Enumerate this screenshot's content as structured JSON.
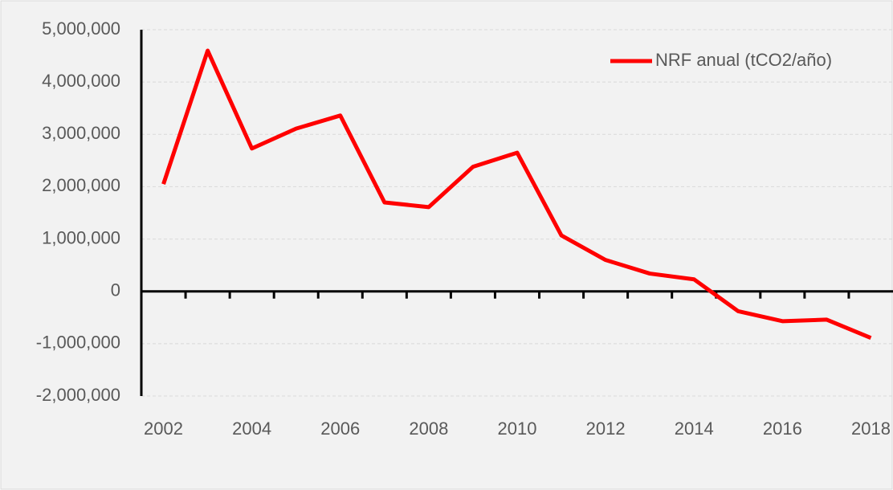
{
  "chart_data": {
    "type": "line",
    "categories": [
      "2002",
      null,
      "2004",
      null,
      "2006",
      null,
      "2008",
      null,
      "2010",
      null,
      "2012",
      null,
      "2014",
      null,
      "2016",
      null,
      "2018"
    ],
    "series": [
      {
        "name": "NRF anual (tCO2/año)",
        "color": "#ff0000",
        "values": [
          2050000,
          4600000,
          2730000,
          3110000,
          3360000,
          1700000,
          1610000,
          2380000,
          2650000,
          1070000,
          600000,
          340000,
          230000,
          -380000,
          -570000,
          -540000,
          -890000
        ]
      }
    ],
    "ylim": [
      -2000000,
      5000000
    ],
    "yticks": [
      {
        "value": -2000000,
        "label": "-2,000,000"
      },
      {
        "value": -1000000,
        "label": "-1,000,000"
      },
      0,
      {
        "value": 1000000,
        "label": "1,000,000"
      },
      {
        "value": 2000000,
        "label": "2,000,000"
      },
      {
        "value": 3000000,
        "label": "3,000,000"
      },
      {
        "value": 4000000,
        "label": "4,000,000"
      },
      {
        "value": 5000000,
        "label": "5,000,000"
      }
    ],
    "grid": true,
    "legend": "top-right"
  }
}
